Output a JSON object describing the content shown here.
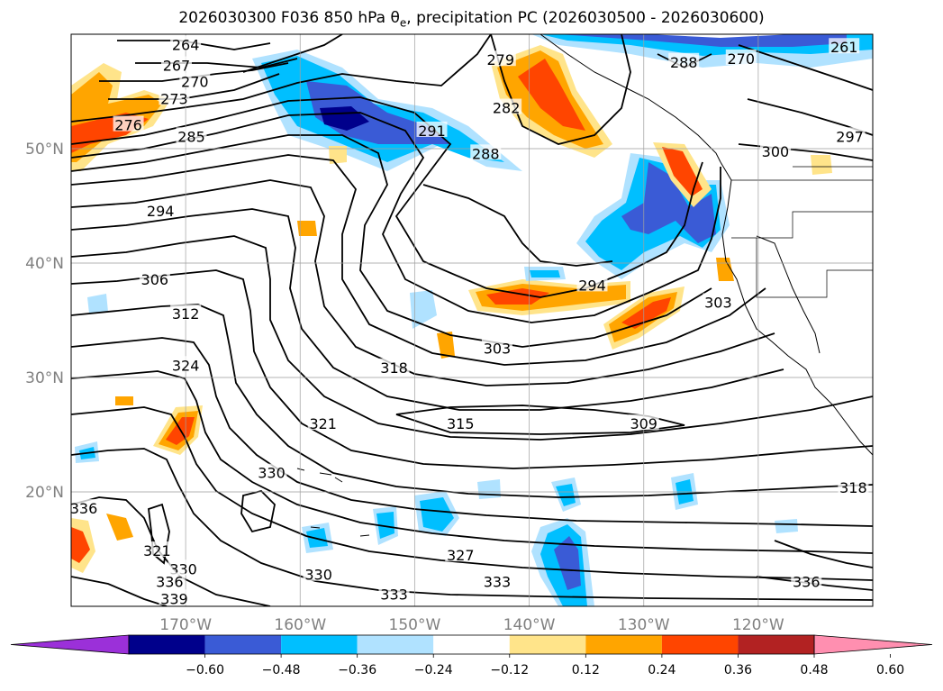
{
  "title": {
    "prefix": "2026030300 F036 850 hPa θ",
    "sub": "e",
    "suffix": ", precipitation PC (2026030500 - 2026030600)"
  },
  "map": {
    "lon_range": [
      -180,
      -110
    ],
    "lat_range": [
      10,
      60
    ],
    "lat_ticks": [
      {
        "value": 50,
        "label": "50°N"
      },
      {
        "value": 40,
        "label": "40°N"
      },
      {
        "value": 30,
        "label": "30°N"
      },
      {
        "value": 20,
        "label": "20°N"
      }
    ],
    "lon_ticks": [
      {
        "value": -170,
        "label": "170°W"
      },
      {
        "value": -160,
        "label": "160°W"
      },
      {
        "value": -150,
        "label": "150°W"
      },
      {
        "value": -140,
        "label": "140°W"
      },
      {
        "value": -130,
        "label": "130°W"
      },
      {
        "value": -120,
        "label": "120°W"
      }
    ],
    "gridlines": true
  },
  "theta_e_labels": [
    {
      "text": "264",
      "lon": -170,
      "lat": 59
    },
    {
      "text": "267",
      "lon": -170.8,
      "lat": 57.2
    },
    {
      "text": "270",
      "lon": -169.2,
      "lat": 55.8
    },
    {
      "text": "273",
      "lon": -171,
      "lat": 54.3
    },
    {
      "text": "276",
      "lon": -175,
      "lat": 52
    },
    {
      "text": "285",
      "lon": -169.5,
      "lat": 51
    },
    {
      "text": "291",
      "lon": -148.5,
      "lat": 51.5
    },
    {
      "text": "288",
      "lon": -143.8,
      "lat": 49.5
    },
    {
      "text": "282",
      "lon": -142,
      "lat": 53.5
    },
    {
      "text": "279",
      "lon": -142.5,
      "lat": 57.7
    },
    {
      "text": "288",
      "lon": -126.5,
      "lat": 57.5
    },
    {
      "text": "270",
      "lon": -121.5,
      "lat": 57.8
    },
    {
      "text": "261",
      "lon": -112.5,
      "lat": 58.8
    },
    {
      "text": "297",
      "lon": -112,
      "lat": 51
    },
    {
      "text": "300",
      "lon": -118.5,
      "lat": 49.7
    },
    {
      "text": "294",
      "lon": -172.2,
      "lat": 44.5
    },
    {
      "text": "306",
      "lon": -172.7,
      "lat": 38.5
    },
    {
      "text": "312",
      "lon": -170,
      "lat": 35.5
    },
    {
      "text": "324",
      "lon": -170,
      "lat": 31
    },
    {
      "text": "294",
      "lon": -134.5,
      "lat": 38
    },
    {
      "text": "303",
      "lon": -142.8,
      "lat": 32.5
    },
    {
      "text": "303",
      "lon": -123.5,
      "lat": 36.5
    },
    {
      "text": "318",
      "lon": -151.8,
      "lat": 30.8
    },
    {
      "text": "321",
      "lon": -158,
      "lat": 25.9
    },
    {
      "text": "315",
      "lon": -146,
      "lat": 25.9
    },
    {
      "text": "309",
      "lon": -130,
      "lat": 25.9
    },
    {
      "text": "330",
      "lon": -162.5,
      "lat": 21.6
    },
    {
      "text": "336",
      "lon": -178.9,
      "lat": 18.5
    },
    {
      "text": "318",
      "lon": -111.7,
      "lat": 20.3
    },
    {
      "text": "327",
      "lon": -146,
      "lat": 14.4
    },
    {
      "text": "321",
      "lon": -172.5,
      "lat": 14.8
    },
    {
      "text": "330",
      "lon": -170.2,
      "lat": 13.2
    },
    {
      "text": "336",
      "lon": -171.4,
      "lat": 12.1
    },
    {
      "text": "339",
      "lon": -171,
      "lat": 10.6
    },
    {
      "text": "330",
      "lon": -158.4,
      "lat": 12.7
    },
    {
      "text": "333",
      "lon": -151.8,
      "lat": 11
    },
    {
      "text": "333",
      "lon": -142.8,
      "lat": 12.1
    },
    {
      "text": "336",
      "lon": -115.8,
      "lat": 12.1
    }
  ],
  "colorbar": {
    "colors": [
      "#9b30d9",
      "#00008b",
      "#3a5bd6",
      "#00bfff",
      "#b0e2ff",
      "#ffffff",
      "#ffe48a",
      "#ffa500",
      "#ff4500",
      "#b22222",
      "#ff8fb0"
    ],
    "ticks": [
      "−0.60",
      "−0.48",
      "−0.36",
      "−0.24",
      "−0.12",
      "0.12",
      "0.24",
      "0.36",
      "0.48",
      "0.60"
    ]
  }
}
